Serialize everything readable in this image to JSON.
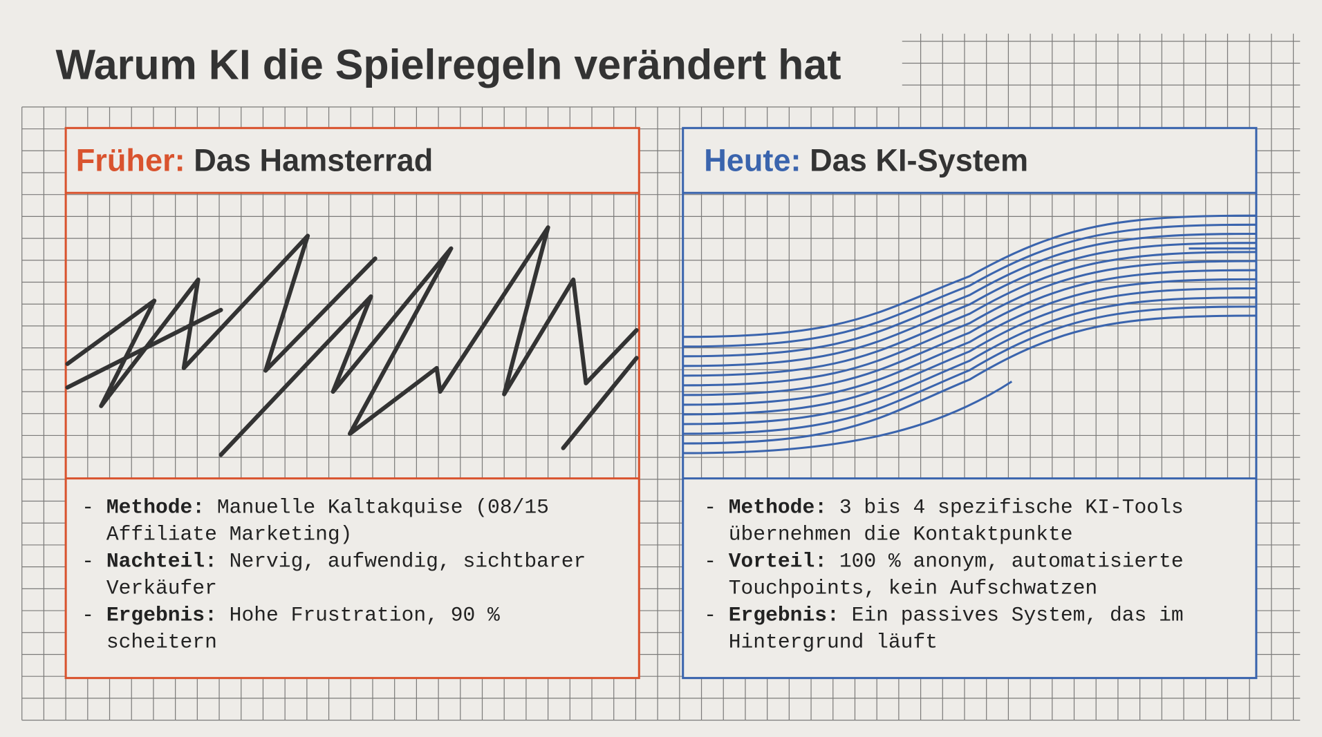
{
  "title": "Warum KI die Spielregeln verändert hat",
  "panels": [
    {
      "label": "Früher:",
      "heading": "Das Hamsterrad",
      "bullets": [
        {
          "label": "Methode:",
          "text": "Manuelle Kaltakquise (08/15 Affiliate Marketing)"
        },
        {
          "label": "Nachteil:",
          "text": "Nervig, aufwendig, sichtbarer Verkäufer"
        },
        {
          "label": "Ergebnis:",
          "text": "Hohe Frustration, 90 % scheitern"
        }
      ]
    },
    {
      "label": "Heute:",
      "heading": "Das KI-System",
      "bullets": [
        {
          "label": "Methode:",
          "text": "3 bis 4 spezifische KI-Tools übernehmen die Kontaktpunkte"
        },
        {
          "label": "Vorteil:",
          "text": "100 % anonym, automatisierte Touchpoints, kein Aufschwatzen"
        },
        {
          "label": "Ergebnis:",
          "text": "Ein passives System, das im Hintergrund läuft"
        }
      ]
    }
  ]
}
